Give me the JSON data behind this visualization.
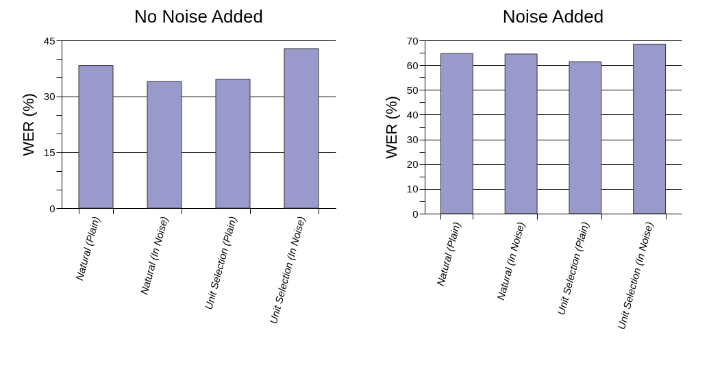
{
  "chart_data": [
    {
      "type": "bar",
      "title": "No Noise Added",
      "ylabel": "WER (%)",
      "categories": [
        "Natural (Plain)",
        "Natural (In Noise)",
        "Unit Selection (Plain)",
        "Unit Selection (In Noise)"
      ],
      "values": [
        38.3,
        34.0,
        34.6,
        42.8
      ],
      "color": "#9999cc",
      "ylim": [
        0,
        45
      ],
      "yticks": [
        0,
        {
          "value": 5,
          "label": null
        },
        {
          "value": 10,
          "label": null
        },
        15,
        {
          "value": 20,
          "label": null
        },
        {
          "value": 25,
          "label": null
        },
        30,
        {
          "value": 35,
          "label": null
        },
        {
          "value": 40,
          "label": null
        },
        45
      ],
      "grid": "y"
    },
    {
      "type": "bar",
      "title": "Noise Added",
      "ylabel": "WER (%)",
      "categories": [
        "Natural (Plain)",
        "Natural (In Noise)",
        "Unit Selection (Plain)",
        "Unit Selection (In Noise)"
      ],
      "values": [
        64.7,
        64.5,
        61.4,
        68.5
      ],
      "color": "#9999cc",
      "ylim": [
        0,
        70
      ],
      "yticks": [
        0,
        {
          "value": 5,
          "label": null
        },
        10,
        {
          "value": 15,
          "label": null
        },
        20,
        {
          "value": 25,
          "label": null
        },
        30,
        {
          "value": 35,
          "label": null
        },
        40,
        {
          "value": 45,
          "label": null
        },
        50,
        {
          "value": 55,
          "label": null
        },
        60,
        {
          "value": 65,
          "label": null
        },
        70
      ],
      "grid": "y"
    }
  ]
}
